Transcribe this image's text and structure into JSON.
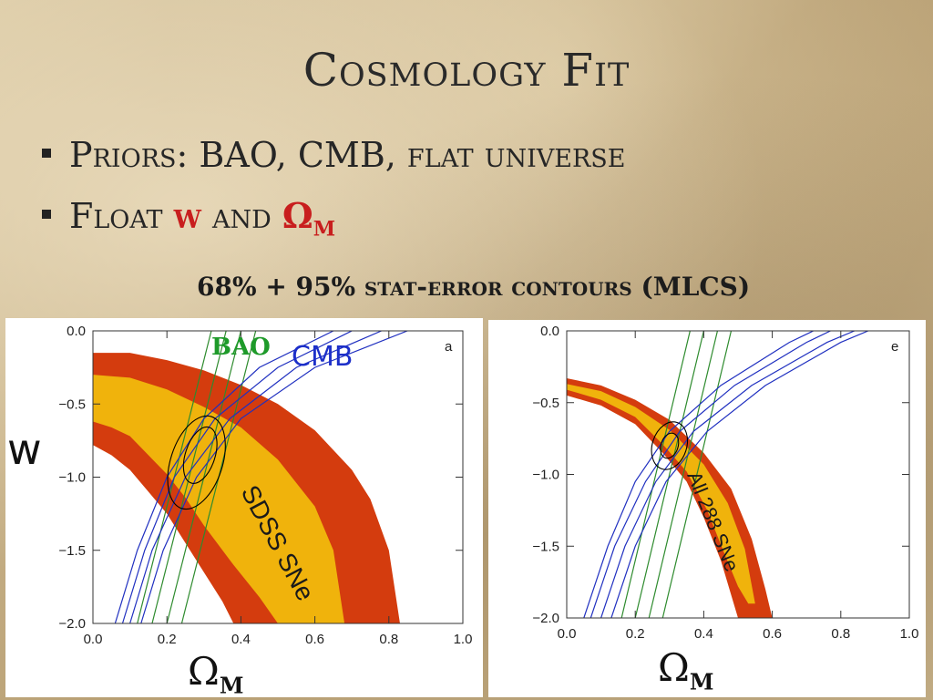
{
  "slide": {
    "title": "Cosmology Fit",
    "bullet1": "Priors: BAO, CMB, flat universe",
    "bullet2_text": "Float",
    "bullet2_w": "w",
    "bullet2_and": "and",
    "bullet2_omega": "Ω",
    "bullet2_omega_sub": "M",
    "caption": "68% + 95% stat-error contours (MLCS)"
  },
  "labels": {
    "y_axis": "w",
    "x_omega": "Ω",
    "x_sub": "M",
    "bao": "BAO",
    "cmb": "CMB"
  },
  "colors": {
    "outer_band": "#d43c0e",
    "inner_band": "#f0b30c",
    "bao": "#2e8b2e",
    "cmb": "#2030c0",
    "combined": "#000000"
  },
  "chart_data": [
    {
      "type": "area",
      "panel_letter": "a",
      "band_label": "SDSS SNe",
      "xlim": [
        0.0,
        1.0
      ],
      "ylim": [
        -2.0,
        0.0
      ],
      "x_ticks": [
        "0.0",
        "0.2",
        "0.4",
        "0.6",
        "0.8",
        "1.0"
      ],
      "y_ticks": [
        "0.0",
        "−0.5",
        "−1.0",
        "−1.5",
        "−2.0"
      ],
      "outer_band": {
        "upper": [
          [
            0.0,
            -0.15
          ],
          [
            0.1,
            -0.15
          ],
          [
            0.2,
            -0.2
          ],
          [
            0.3,
            -0.27
          ],
          [
            0.4,
            -0.37
          ],
          [
            0.5,
            -0.5
          ],
          [
            0.6,
            -0.68
          ],
          [
            0.7,
            -0.95
          ],
          [
            0.75,
            -1.15
          ],
          [
            0.8,
            -1.5
          ],
          [
            0.83,
            -2.0
          ]
        ],
        "lower": [
          [
            0.0,
            -0.78
          ],
          [
            0.05,
            -0.85
          ],
          [
            0.1,
            -0.95
          ],
          [
            0.15,
            -1.1
          ],
          [
            0.2,
            -1.25
          ],
          [
            0.25,
            -1.45
          ],
          [
            0.3,
            -1.65
          ],
          [
            0.35,
            -1.85
          ],
          [
            0.38,
            -2.0
          ]
        ]
      },
      "inner_band": {
        "upper": [
          [
            0.0,
            -0.3
          ],
          [
            0.1,
            -0.32
          ],
          [
            0.2,
            -0.4
          ],
          [
            0.3,
            -0.52
          ],
          [
            0.4,
            -0.66
          ],
          [
            0.5,
            -0.88
          ],
          [
            0.6,
            -1.2
          ],
          [
            0.65,
            -1.5
          ],
          [
            0.68,
            -2.0
          ]
        ],
        "lower": [
          [
            0.0,
            -0.62
          ],
          [
            0.05,
            -0.66
          ],
          [
            0.1,
            -0.72
          ],
          [
            0.15,
            -0.85
          ],
          [
            0.2,
            -0.98
          ],
          [
            0.25,
            -1.14
          ],
          [
            0.3,
            -1.33
          ],
          [
            0.38,
            -1.6
          ],
          [
            0.45,
            -1.82
          ],
          [
            0.5,
            -2.0
          ]
        ]
      },
      "bao_lines": [
        [
          [
            0.12,
            -2.0
          ],
          [
            0.32,
            0.0
          ]
        ],
        [
          [
            0.16,
            -2.0
          ],
          [
            0.36,
            0.0
          ]
        ],
        [
          [
            0.2,
            -2.0
          ],
          [
            0.4,
            0.0
          ]
        ],
        [
          [
            0.24,
            -2.0
          ],
          [
            0.44,
            0.0
          ]
        ]
      ],
      "cmb_lines": [
        [
          [
            0.06,
            -2.0
          ],
          [
            0.12,
            -1.5
          ],
          [
            0.2,
            -1.0
          ],
          [
            0.3,
            -0.6
          ],
          [
            0.45,
            -0.25
          ],
          [
            0.65,
            0.0
          ]
        ],
        [
          [
            0.08,
            -2.0
          ],
          [
            0.14,
            -1.5
          ],
          [
            0.22,
            -1.0
          ],
          [
            0.33,
            -0.6
          ],
          [
            0.5,
            -0.25
          ],
          [
            0.7,
            0.0
          ]
        ],
        [
          [
            0.1,
            -2.0
          ],
          [
            0.16,
            -1.5
          ],
          [
            0.25,
            -1.0
          ],
          [
            0.37,
            -0.6
          ],
          [
            0.55,
            -0.25
          ],
          [
            0.78,
            0.0
          ]
        ],
        [
          [
            0.13,
            -2.0
          ],
          [
            0.19,
            -1.5
          ],
          [
            0.28,
            -1.0
          ],
          [
            0.4,
            -0.6
          ],
          [
            0.6,
            -0.25
          ],
          [
            0.85,
            0.0
          ]
        ]
      ],
      "contour_inner": {
        "cx": 0.29,
        "cy": -0.85,
        "rx": 0.04,
        "ry": 0.2
      },
      "contour_outer": {
        "cx": 0.28,
        "cy": -0.9,
        "rx": 0.07,
        "ry": 0.33
      }
    },
    {
      "type": "area",
      "panel_letter": "e",
      "band_label": "All 288 SNe",
      "xlim": [
        0.0,
        1.0
      ],
      "ylim": [
        -2.0,
        0.0
      ],
      "x_ticks": [
        "0.0",
        "0.2",
        "0.4",
        "0.6",
        "0.8",
        "1.0"
      ],
      "y_ticks": [
        "0.0",
        "−0.5",
        "−1.0",
        "−1.5",
        "−2.0"
      ],
      "outer_band": {
        "upper": [
          [
            0.0,
            -0.33
          ],
          [
            0.1,
            -0.38
          ],
          [
            0.2,
            -0.48
          ],
          [
            0.3,
            -0.62
          ],
          [
            0.4,
            -0.85
          ],
          [
            0.48,
            -1.1
          ],
          [
            0.54,
            -1.45
          ],
          [
            0.58,
            -1.8
          ],
          [
            0.6,
            -2.0
          ]
        ],
        "lower": [
          [
            0.0,
            -0.45
          ],
          [
            0.1,
            -0.52
          ],
          [
            0.2,
            -0.65
          ],
          [
            0.28,
            -0.85
          ],
          [
            0.35,
            -1.05
          ],
          [
            0.4,
            -1.3
          ],
          [
            0.45,
            -1.6
          ],
          [
            0.5,
            -2.0
          ]
        ]
      },
      "inner_band": {
        "upper": [
          [
            0.0,
            -0.37
          ],
          [
            0.1,
            -0.42
          ],
          [
            0.2,
            -0.53
          ],
          [
            0.3,
            -0.69
          ],
          [
            0.4,
            -0.93
          ],
          [
            0.47,
            -1.2
          ],
          [
            0.52,
            -1.52
          ],
          [
            0.55,
            -1.9
          ]
        ],
        "lower": [
          [
            0.0,
            -0.41
          ],
          [
            0.1,
            -0.48
          ],
          [
            0.2,
            -0.6
          ],
          [
            0.28,
            -0.79
          ],
          [
            0.35,
            -0.98
          ],
          [
            0.41,
            -1.25
          ],
          [
            0.46,
            -1.55
          ],
          [
            0.5,
            -1.78
          ],
          [
            0.53,
            -1.9
          ]
        ]
      },
      "bao_lines": [
        [
          [
            0.16,
            -2.0
          ],
          [
            0.36,
            0.0
          ]
        ],
        [
          [
            0.2,
            -2.0
          ],
          [
            0.4,
            0.0
          ]
        ],
        [
          [
            0.24,
            -2.0
          ],
          [
            0.44,
            0.0
          ]
        ],
        [
          [
            0.28,
            -2.0
          ],
          [
            0.48,
            0.0
          ]
        ]
      ],
      "cmb_lines": [
        [
          [
            0.05,
            -2.0
          ],
          [
            0.12,
            -1.5
          ],
          [
            0.2,
            -1.05
          ],
          [
            0.3,
            -0.7
          ],
          [
            0.45,
            -0.38
          ],
          [
            0.65,
            -0.08
          ],
          [
            0.72,
            0.0
          ]
        ],
        [
          [
            0.07,
            -2.0
          ],
          [
            0.14,
            -1.5
          ],
          [
            0.23,
            -1.05
          ],
          [
            0.33,
            -0.7
          ],
          [
            0.49,
            -0.38
          ],
          [
            0.7,
            -0.08
          ],
          [
            0.77,
            0.0
          ]
        ],
        [
          [
            0.1,
            -2.0
          ],
          [
            0.17,
            -1.5
          ],
          [
            0.26,
            -1.05
          ],
          [
            0.37,
            -0.7
          ],
          [
            0.54,
            -0.38
          ],
          [
            0.76,
            -0.08
          ],
          [
            0.84,
            0.0
          ]
        ],
        [
          [
            0.13,
            -2.0
          ],
          [
            0.2,
            -1.5
          ],
          [
            0.29,
            -1.05
          ],
          [
            0.41,
            -0.7
          ],
          [
            0.58,
            -0.38
          ],
          [
            0.8,
            -0.08
          ],
          [
            0.88,
            0.0
          ]
        ]
      ],
      "contour_inner": {
        "cx": 0.3,
        "cy": -0.8,
        "rx": 0.025,
        "ry": 0.09
      },
      "contour_outer": {
        "cx": 0.3,
        "cy": -0.8,
        "rx": 0.05,
        "ry": 0.17
      }
    }
  ]
}
